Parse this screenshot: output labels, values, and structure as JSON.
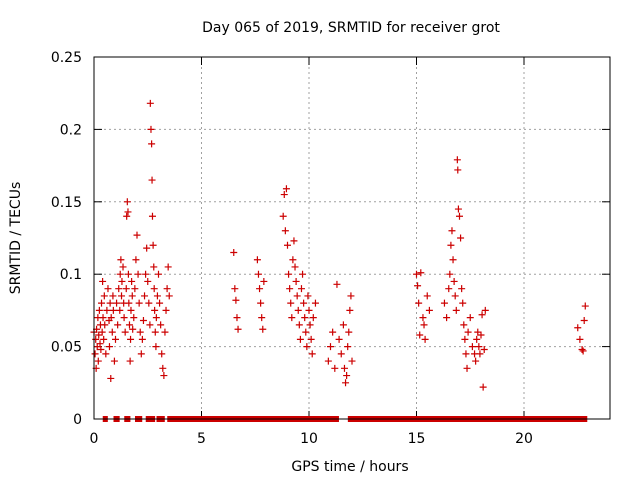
{
  "chart_data": {
    "type": "scatter",
    "title": "Day 065 of 2019, SRMTID for receiver grot",
    "xlabel": "GPS time / hours",
    "ylabel": "SRMTID / TECUs",
    "xlim": [
      0,
      24
    ],
    "ylim": [
      0,
      0.25
    ],
    "x_ticks": [
      0,
      5,
      10,
      15,
      20
    ],
    "x_tick_labels": [
      "0",
      "5",
      "10",
      "15",
      "20"
    ],
    "y_ticks": [
      0,
      0.05,
      0.1,
      0.15,
      0.2,
      0.25
    ],
    "y_tick_labels": [
      "0",
      "0.05",
      "0.1",
      "0.15",
      "0.2",
      "0.25"
    ],
    "grid": true,
    "legend": "none",
    "marker": "plus",
    "colors": {
      "series": "#cc0000",
      "grid": "#a0a0a0",
      "axis": "#000000"
    },
    "series": [
      {
        "points": [
          [
            0.0,
            0.06
          ],
          [
            0.05,
            0.045
          ],
          [
            0.08,
            0.055
          ],
          [
            0.1,
            0.035
          ],
          [
            0.12,
            0.062
          ],
          [
            0.15,
            0.05
          ],
          [
            0.18,
            0.07
          ],
          [
            0.2,
            0.04
          ],
          [
            0.22,
            0.058
          ],
          [
            0.25,
            0.075
          ],
          [
            0.28,
            0.052
          ],
          [
            0.3,
            0.065
          ],
          [
            0.32,
            0.048
          ],
          [
            0.35,
            0.08
          ],
          [
            0.38,
            0.06
          ],
          [
            0.4,
            0.095
          ],
          [
            0.42,
            0.07
          ],
          [
            0.45,
            0.055
          ],
          [
            0.48,
            0.085
          ],
          [
            0.5,
            0.065
          ],
          [
            0.55,
            0.045
          ],
          [
            0.6,
            0.075
          ],
          [
            0.65,
            0.09
          ],
          [
            0.7,
            0.068
          ],
          [
            0.72,
            0.05
          ],
          [
            0.75,
            0.08
          ],
          [
            0.78,
            0.028
          ],
          [
            0.8,
            0.07
          ],
          [
            0.85,
            0.06
          ],
          [
            0.88,
            0.085
          ],
          [
            0.9,
            0.075
          ],
          [
            0.95,
            0.04
          ],
          [
            1.0,
            0.055
          ],
          [
            1.05,
            0.08
          ],
          [
            1.1,
            0.065
          ],
          [
            1.15,
            0.09
          ],
          [
            1.2,
            0.075
          ],
          [
            1.22,
            0.1
          ],
          [
            1.25,
            0.11
          ],
          [
            1.28,
            0.085
          ],
          [
            1.3,
            0.095
          ],
          [
            1.35,
            0.105
          ],
          [
            1.38,
            0.08
          ],
          [
            1.4,
            0.07
          ],
          [
            1.45,
            0.06
          ],
          [
            1.5,
            0.09
          ],
          [
            1.52,
            0.14
          ],
          [
            1.55,
            0.15
          ],
          [
            1.58,
            0.143
          ],
          [
            1.6,
            0.1
          ],
          [
            1.62,
            0.08
          ],
          [
            1.65,
            0.065
          ],
          [
            1.68,
            0.04
          ],
          [
            1.7,
            0.055
          ],
          [
            1.72,
            0.075
          ],
          [
            1.75,
            0.095
          ],
          [
            1.78,
            0.085
          ],
          [
            1.8,
            0.062
          ],
          [
            1.85,
            0.07
          ],
          [
            1.9,
            0.09
          ],
          [
            1.95,
            0.11
          ],
          [
            2.0,
            0.127
          ],
          [
            2.05,
            0.1
          ],
          [
            2.1,
            0.08
          ],
          [
            2.15,
            0.06
          ],
          [
            2.2,
            0.045
          ],
          [
            2.25,
            0.055
          ],
          [
            2.3,
            0.068
          ],
          [
            2.35,
            0.085
          ],
          [
            2.4,
            0.1
          ],
          [
            2.45,
            0.118
          ],
          [
            2.5,
            0.095
          ],
          [
            2.55,
            0.08
          ],
          [
            2.6,
            0.065
          ],
          [
            2.62,
            0.218
          ],
          [
            2.65,
            0.2
          ],
          [
            2.68,
            0.19
          ],
          [
            2.7,
            0.165
          ],
          [
            2.72,
            0.14
          ],
          [
            2.75,
            0.12
          ],
          [
            2.78,
            0.105
          ],
          [
            2.8,
            0.09
          ],
          [
            2.82,
            0.075
          ],
          [
            2.85,
            0.06
          ],
          [
            2.88,
            0.05
          ],
          [
            2.9,
            0.07
          ],
          [
            2.95,
            0.085
          ],
          [
            3.0,
            0.1
          ],
          [
            3.05,
            0.08
          ],
          [
            3.1,
            0.065
          ],
          [
            3.15,
            0.045
          ],
          [
            3.2,
            0.035
          ],
          [
            3.25,
            0.03
          ],
          [
            3.3,
            0.06
          ],
          [
            3.35,
            0.075
          ],
          [
            3.4,
            0.09
          ],
          [
            3.45,
            0.105
          ],
          [
            3.5,
            0.085
          ],
          [
            6.5,
            0.115
          ],
          [
            6.55,
            0.09
          ],
          [
            6.6,
            0.082
          ],
          [
            6.65,
            0.07
          ],
          [
            6.7,
            0.062
          ],
          [
            7.6,
            0.11
          ],
          [
            7.65,
            0.1
          ],
          [
            7.7,
            0.09
          ],
          [
            7.75,
            0.08
          ],
          [
            7.8,
            0.07
          ],
          [
            7.85,
            0.062
          ],
          [
            7.9,
            0.095
          ],
          [
            8.8,
            0.14
          ],
          [
            8.85,
            0.155
          ],
          [
            8.9,
            0.13
          ],
          [
            8.95,
            0.159
          ],
          [
            9.0,
            0.12
          ],
          [
            9.05,
            0.1
          ],
          [
            9.1,
            0.09
          ],
          [
            9.15,
            0.08
          ],
          [
            9.2,
            0.07
          ],
          [
            9.25,
            0.11
          ],
          [
            9.3,
            0.123
          ],
          [
            9.35,
            0.105
          ],
          [
            9.4,
            0.095
          ],
          [
            9.45,
            0.085
          ],
          [
            9.5,
            0.075
          ],
          [
            9.55,
            0.065
          ],
          [
            9.6,
            0.055
          ],
          [
            9.65,
            0.09
          ],
          [
            9.7,
            0.1
          ],
          [
            9.75,
            0.08
          ],
          [
            9.8,
            0.07
          ],
          [
            9.85,
            0.06
          ],
          [
            9.9,
            0.05
          ],
          [
            9.95,
            0.085
          ],
          [
            10.0,
            0.075
          ],
          [
            10.05,
            0.065
          ],
          [
            10.1,
            0.055
          ],
          [
            10.15,
            0.045
          ],
          [
            10.2,
            0.07
          ],
          [
            10.3,
            0.08
          ],
          [
            10.9,
            0.04
          ],
          [
            11.0,
            0.05
          ],
          [
            11.1,
            0.06
          ],
          [
            11.2,
            0.035
          ],
          [
            11.3,
            0.093
          ],
          [
            11.4,
            0.055
          ],
          [
            11.5,
            0.045
          ],
          [
            11.6,
            0.065
          ],
          [
            11.65,
            0.035
          ],
          [
            11.7,
            0.025
          ],
          [
            11.75,
            0.03
          ],
          [
            11.8,
            0.05
          ],
          [
            11.85,
            0.06
          ],
          [
            11.9,
            0.075
          ],
          [
            11.95,
            0.085
          ],
          [
            12.0,
            0.04
          ],
          [
            15.0,
            0.1
          ],
          [
            15.05,
            0.092
          ],
          [
            15.1,
            0.08
          ],
          [
            15.15,
            0.058
          ],
          [
            15.2,
            0.101
          ],
          [
            15.3,
            0.07
          ],
          [
            15.35,
            0.065
          ],
          [
            15.4,
            0.055
          ],
          [
            15.5,
            0.085
          ],
          [
            15.6,
            0.075
          ],
          [
            16.3,
            0.08
          ],
          [
            16.4,
            0.07
          ],
          [
            16.5,
            0.09
          ],
          [
            16.55,
            0.1
          ],
          [
            16.6,
            0.12
          ],
          [
            16.65,
            0.13
          ],
          [
            16.7,
            0.11
          ],
          [
            16.75,
            0.095
          ],
          [
            16.8,
            0.085
          ],
          [
            16.85,
            0.075
          ],
          [
            16.9,
            0.179
          ],
          [
            16.92,
            0.172
          ],
          [
            16.95,
            0.145
          ],
          [
            17.0,
            0.14
          ],
          [
            17.05,
            0.125
          ],
          [
            17.1,
            0.09
          ],
          [
            17.15,
            0.08
          ],
          [
            17.2,
            0.065
          ],
          [
            17.25,
            0.055
          ],
          [
            17.3,
            0.045
          ],
          [
            17.35,
            0.035
          ],
          [
            17.4,
            0.06
          ],
          [
            17.5,
            0.07
          ],
          [
            17.6,
            0.05
          ],
          [
            17.7,
            0.045
          ],
          [
            17.75,
            0.04
          ],
          [
            17.8,
            0.055
          ],
          [
            17.85,
            0.06
          ],
          [
            17.9,
            0.05
          ],
          [
            17.95,
            0.045
          ],
          [
            18.0,
            0.058
          ],
          [
            18.05,
            0.072
          ],
          [
            18.1,
            0.022
          ],
          [
            18.15,
            0.048
          ],
          [
            18.2,
            0.075
          ],
          [
            22.5,
            0.063
          ],
          [
            22.6,
            0.055
          ],
          [
            22.7,
            0.048
          ],
          [
            22.75,
            0.047
          ],
          [
            22.8,
            0.068
          ],
          [
            22.85,
            0.078
          ]
        ]
      },
      {
        "x_ranges": [
          [
            0.5,
            0.55
          ],
          [
            1.0,
            1.1
          ],
          [
            1.5,
            1.6
          ],
          [
            2.0,
            2.15
          ],
          [
            2.5,
            2.75
          ],
          [
            3.0,
            3.2
          ],
          [
            3.5,
            10.3
          ],
          [
            10.35,
            11.3
          ],
          [
            11.9,
            22.85
          ]
        ],
        "y": 0
      }
    ]
  }
}
